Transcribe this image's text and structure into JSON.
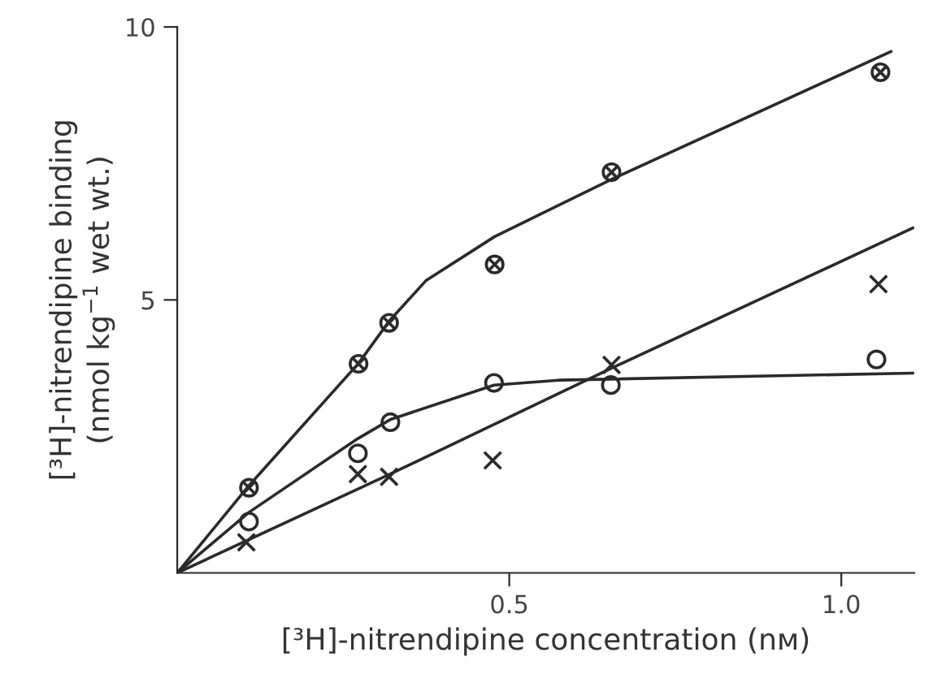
{
  "chart_data": {
    "type": "scatter",
    "xlabel": "[³H]-nitrendipine concentration (nᴍ)",
    "ylabel": "[³H]-nitrendipine binding\n(nmol kg$^{−1}$ wet wt.)",
    "xlim": [
      0,
      1.11
    ],
    "ylim": [
      0,
      10
    ],
    "xticks": [
      0.5,
      {
        "value": 1.0,
        "label": "1.0"
      }
    ],
    "yticks": [
      5,
      10
    ],
    "grid": false,
    "legend": false,
    "series": [
      {
        "marker": "circle cross",
        "color": "#2a2a2a",
        "x": [
          0.108,
          0.273,
          0.319,
          0.478,
          0.654,
          1.059
        ],
        "values": [
          1.56,
          3.83,
          4.58,
          5.65,
          7.34,
          9.17
        ]
      },
      {
        "marker": "circle",
        "color": "#2a2a2a",
        "x": [
          0.108,
          0.272,
          0.321,
          0.477,
          0.653,
          1.053
        ],
        "values": [
          0.94,
          2.19,
          2.76,
          3.48,
          3.44,
          3.91
        ]
      },
      {
        "marker": "cross",
        "color": "#2a2a2a",
        "x": [
          0.104,
          0.272,
          0.319,
          0.475,
          0.654,
          1.056
        ],
        "values": [
          0.56,
          1.81,
          1.76,
          2.06,
          3.81,
          5.29
        ]
      },
      {
        "type": "line",
        "marker": "none",
        "line_style": "solid",
        "color": "#2a2a2a",
        "x": [
          0,
          0.108,
          0.273,
          0.319,
          0.375,
          0.478,
          0.654,
          1.075
        ],
        "values": [
          0,
          1.6,
          3.84,
          4.61,
          5.36,
          6.16,
          7.21,
          9.55
        ]
      },
      {
        "type": "line",
        "marker": "none",
        "line_style": "solid",
        "color": "#2a2a2a",
        "x": [
          0,
          0.108,
          0.272,
          0.321,
          0.477,
          0.574,
          1.108
        ],
        "values": [
          0,
          1.11,
          2.46,
          2.81,
          3.44,
          3.53,
          3.66
        ]
      },
      {
        "type": "line",
        "marker": "none",
        "line_style": "solid",
        "color": "#2a2a2a",
        "x": [
          0,
          0.319,
          0.654,
          1.108
        ],
        "values": [
          0,
          1.8,
          3.75,
          6.32
        ]
      }
    ]
  }
}
